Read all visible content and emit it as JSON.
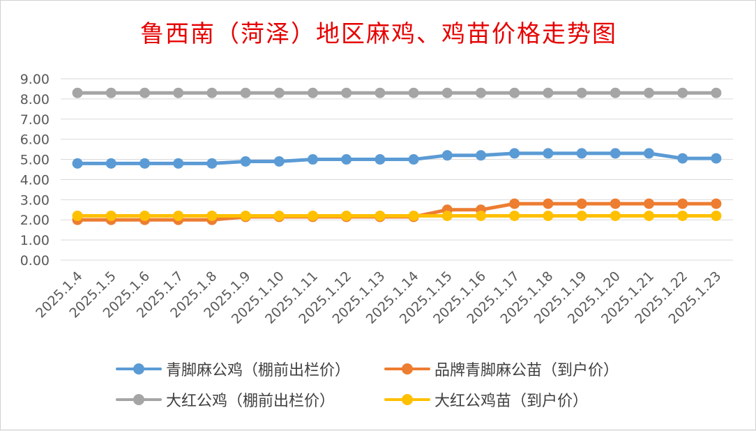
{
  "chart_data": {
    "type": "line",
    "title": "鲁西南（菏泽）地区麻鸡、鸡苗价格走势图",
    "categories": [
      "2025.1.4",
      "2025.1.5",
      "2025.1.6",
      "2025.1.7",
      "2025.1.8",
      "2025.1.9",
      "2025.1.10",
      "2025.1.11",
      "2025.1.12",
      "2025.1.13",
      "2025.1.14",
      "2025.1.15",
      "2025.1.16",
      "2025.1.17",
      "2025.1.18",
      "2025.1.19",
      "2025.1.20",
      "2025.1.21",
      "2025.1.22",
      "2025.1.23"
    ],
    "ylim": [
      0,
      9
    ],
    "yticks": [
      "0.00",
      "1.00",
      "2.00",
      "3.00",
      "4.00",
      "5.00",
      "6.00",
      "7.00",
      "8.00",
      "9.00"
    ],
    "grid": true,
    "legend_position": "bottom",
    "series": [
      {
        "name": "青脚麻公鸡（棚前出栏价）",
        "color": "#5b9bd5",
        "values": [
          4.8,
          4.8,
          4.8,
          4.8,
          4.8,
          4.9,
          4.9,
          5.0,
          5.0,
          5.0,
          5.0,
          5.2,
          5.2,
          5.3,
          5.3,
          5.3,
          5.3,
          5.3,
          5.05,
          5.05
        ]
      },
      {
        "name": "品牌青脚麻公苗（到户价）",
        "color": "#ed7d31",
        "values": [
          2.0,
          2.0,
          2.0,
          2.0,
          2.0,
          2.15,
          2.15,
          2.15,
          2.15,
          2.15,
          2.15,
          2.5,
          2.5,
          2.8,
          2.8,
          2.8,
          2.8,
          2.8,
          2.8,
          2.8
        ]
      },
      {
        "name": "大红公鸡（棚前出栏价）",
        "color": "#a5a5a5",
        "values": [
          8.3,
          8.3,
          8.3,
          8.3,
          8.3,
          8.3,
          8.3,
          8.3,
          8.3,
          8.3,
          8.3,
          8.3,
          8.3,
          8.3,
          8.3,
          8.3,
          8.3,
          8.3,
          8.3,
          8.3
        ]
      },
      {
        "name": "大红公鸡苗（到户价）",
        "color": "#ffc000",
        "values": [
          2.2,
          2.2,
          2.2,
          2.2,
          2.2,
          2.2,
          2.2,
          2.2,
          2.2,
          2.2,
          2.2,
          2.2,
          2.2,
          2.2,
          2.2,
          2.2,
          2.2,
          2.2,
          2.2,
          2.2
        ]
      }
    ]
  }
}
